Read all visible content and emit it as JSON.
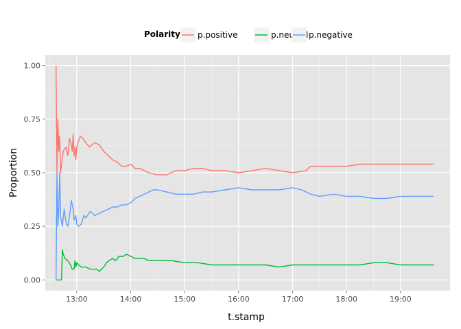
{
  "chart_data": {
    "type": "line",
    "title": "",
    "xlabel": "t.stamp",
    "ylabel": "Proportion",
    "legend": {
      "title": "Polarity",
      "position": "top"
    },
    "xlim": [
      "12:25",
      "19:55"
    ],
    "ylim": [
      -0.05,
      1.05
    ],
    "x_ticks": [
      "13:00",
      "14:00",
      "15:00",
      "16:00",
      "17:00",
      "18:00",
      "19:00"
    ],
    "y_ticks": [
      0.0,
      0.25,
      0.5,
      0.75,
      1.0
    ],
    "y_tick_labels": [
      "0.00",
      "0.25",
      "0.50",
      "0.75",
      "1.00"
    ],
    "grid": true,
    "series": [
      {
        "name": "p.positive",
        "color": "#f8766d",
        "points": [
          [
            "12:37",
            1.0
          ],
          [
            "12:38",
            0.5
          ],
          [
            "12:39",
            0.75
          ],
          [
            "12:40",
            0.6
          ],
          [
            "12:41",
            0.67
          ],
          [
            "12:42",
            0.5
          ],
          [
            "12:45",
            0.6
          ],
          [
            "12:48",
            0.62
          ],
          [
            "12:50",
            0.58
          ],
          [
            "12:52",
            0.66
          ],
          [
            "12:54",
            0.63
          ],
          [
            "12:55",
            0.6
          ],
          [
            "12:56",
            0.68
          ],
          [
            "12:57",
            0.58
          ],
          [
            "12:58",
            0.62
          ],
          [
            "12:59",
            0.56
          ],
          [
            "13:00",
            0.62
          ],
          [
            "13:02",
            0.65
          ],
          [
            "13:04",
            0.67
          ],
          [
            "13:07",
            0.66
          ],
          [
            "13:10",
            0.64
          ],
          [
            "13:14",
            0.62
          ],
          [
            "13:20",
            0.64
          ],
          [
            "13:25",
            0.63
          ],
          [
            "13:30",
            0.6
          ],
          [
            "13:35",
            0.58
          ],
          [
            "13:40",
            0.56
          ],
          [
            "13:45",
            0.55
          ],
          [
            "13:50",
            0.53
          ],
          [
            "13:55",
            0.53
          ],
          [
            "14:00",
            0.54
          ],
          [
            "14:05",
            0.52
          ],
          [
            "14:10",
            0.52
          ],
          [
            "14:15",
            0.51
          ],
          [
            "14:20",
            0.5
          ],
          [
            "14:30",
            0.49
          ],
          [
            "14:40",
            0.49
          ],
          [
            "14:50",
            0.51
          ],
          [
            "15:00",
            0.51
          ],
          [
            "15:10",
            0.52
          ],
          [
            "15:20",
            0.52
          ],
          [
            "15:30",
            0.51
          ],
          [
            "15:45",
            0.51
          ],
          [
            "16:00",
            0.5
          ],
          [
            "16:15",
            0.51
          ],
          [
            "16:30",
            0.52
          ],
          [
            "16:45",
            0.51
          ],
          [
            "17:00",
            0.5
          ],
          [
            "17:15",
            0.51
          ],
          [
            "17:20",
            0.53
          ],
          [
            "17:30",
            0.53
          ],
          [
            "17:45",
            0.53
          ],
          [
            "18:00",
            0.53
          ],
          [
            "18:15",
            0.54
          ],
          [
            "18:30",
            0.54
          ],
          [
            "18:45",
            0.54
          ],
          [
            "19:00",
            0.54
          ],
          [
            "19:15",
            0.54
          ],
          [
            "19:30",
            0.54
          ],
          [
            "19:37",
            0.54
          ]
        ]
      },
      {
        "name": "p.neutral",
        "color": "#00ba38",
        "points": [
          [
            "12:37",
            0.0
          ],
          [
            "12:38",
            0.0
          ],
          [
            "12:43",
            0.0
          ],
          [
            "12:44",
            0.14
          ],
          [
            "12:45",
            0.12
          ],
          [
            "12:47",
            0.1
          ],
          [
            "12:50",
            0.09
          ],
          [
            "12:53",
            0.07
          ],
          [
            "12:55",
            0.05
          ],
          [
            "12:57",
            0.05
          ],
          [
            "12:58",
            0.09
          ],
          [
            "12:59",
            0.06
          ],
          [
            "13:00",
            0.08
          ],
          [
            "13:02",
            0.07
          ],
          [
            "13:05",
            0.06
          ],
          [
            "13:10",
            0.06
          ],
          [
            "13:15",
            0.05
          ],
          [
            "13:22",
            0.05
          ],
          [
            "13:25",
            0.04
          ],
          [
            "13:30",
            0.06
          ],
          [
            "13:33",
            0.08
          ],
          [
            "13:36",
            0.09
          ],
          [
            "13:40",
            0.1
          ],
          [
            "13:43",
            0.09
          ],
          [
            "13:47",
            0.11
          ],
          [
            "13:52",
            0.11
          ],
          [
            "13:55",
            0.12
          ],
          [
            "14:00",
            0.11
          ],
          [
            "14:05",
            0.1
          ],
          [
            "14:10",
            0.1
          ],
          [
            "14:15",
            0.1
          ],
          [
            "14:20",
            0.09
          ],
          [
            "14:30",
            0.09
          ],
          [
            "14:45",
            0.09
          ],
          [
            "15:00",
            0.08
          ],
          [
            "15:15",
            0.08
          ],
          [
            "15:30",
            0.07
          ],
          [
            "15:45",
            0.07
          ],
          [
            "16:00",
            0.07
          ],
          [
            "16:15",
            0.07
          ],
          [
            "16:30",
            0.07
          ],
          [
            "16:45",
            0.06
          ],
          [
            "17:00",
            0.07
          ],
          [
            "17:15",
            0.07
          ],
          [
            "17:30",
            0.07
          ],
          [
            "17:45",
            0.07
          ],
          [
            "18:00",
            0.07
          ],
          [
            "18:15",
            0.07
          ],
          [
            "18:30",
            0.08
          ],
          [
            "18:45",
            0.08
          ],
          [
            "19:00",
            0.07
          ],
          [
            "19:15",
            0.07
          ],
          [
            "19:30",
            0.07
          ],
          [
            "19:37",
            0.07
          ]
        ]
      },
      {
        "name": "p.negative",
        "color": "#619cff",
        "points": [
          [
            "12:37",
            0.0
          ],
          [
            "12:38",
            0.5
          ],
          [
            "12:39",
            0.25
          ],
          [
            "12:40",
            0.33
          ],
          [
            "12:41",
            0.5
          ],
          [
            "12:42",
            0.3
          ],
          [
            "12:44",
            0.25
          ],
          [
            "12:46",
            0.33
          ],
          [
            "12:48",
            0.27
          ],
          [
            "12:50",
            0.25
          ],
          [
            "12:52",
            0.3
          ],
          [
            "12:54",
            0.37
          ],
          [
            "12:56",
            0.33
          ],
          [
            "12:57",
            0.28
          ],
          [
            "12:59",
            0.3
          ],
          [
            "13:00",
            0.26
          ],
          [
            "13:02",
            0.25
          ],
          [
            "13:05",
            0.26
          ],
          [
            "13:08",
            0.3
          ],
          [
            "13:10",
            0.29
          ],
          [
            "13:12",
            0.3
          ],
          [
            "13:15",
            0.32
          ],
          [
            "13:20",
            0.3
          ],
          [
            "13:25",
            0.31
          ],
          [
            "13:30",
            0.32
          ],
          [
            "13:35",
            0.33
          ],
          [
            "13:40",
            0.34
          ],
          [
            "13:45",
            0.34
          ],
          [
            "13:50",
            0.35
          ],
          [
            "13:55",
            0.35
          ],
          [
            "14:00",
            0.36
          ],
          [
            "14:05",
            0.38
          ],
          [
            "14:10",
            0.39
          ],
          [
            "14:15",
            0.4
          ],
          [
            "14:20",
            0.41
          ],
          [
            "14:25",
            0.42
          ],
          [
            "14:30",
            0.42
          ],
          [
            "14:40",
            0.41
          ],
          [
            "14:50",
            0.4
          ],
          [
            "15:00",
            0.4
          ],
          [
            "15:10",
            0.4
          ],
          [
            "15:20",
            0.41
          ],
          [
            "15:30",
            0.41
          ],
          [
            "15:45",
            0.42
          ],
          [
            "16:00",
            0.43
          ],
          [
            "16:15",
            0.42
          ],
          [
            "16:30",
            0.42
          ],
          [
            "16:45",
            0.42
          ],
          [
            "17:00",
            0.43
          ],
          [
            "17:10",
            0.42
          ],
          [
            "17:15",
            0.41
          ],
          [
            "17:20",
            0.4
          ],
          [
            "17:30",
            0.39
          ],
          [
            "17:45",
            0.4
          ],
          [
            "18:00",
            0.39
          ],
          [
            "18:15",
            0.39
          ],
          [
            "18:30",
            0.38
          ],
          [
            "18:45",
            0.38
          ],
          [
            "19:00",
            0.39
          ],
          [
            "19:15",
            0.39
          ],
          [
            "19:30",
            0.39
          ],
          [
            "19:37",
            0.39
          ]
        ]
      }
    ]
  }
}
